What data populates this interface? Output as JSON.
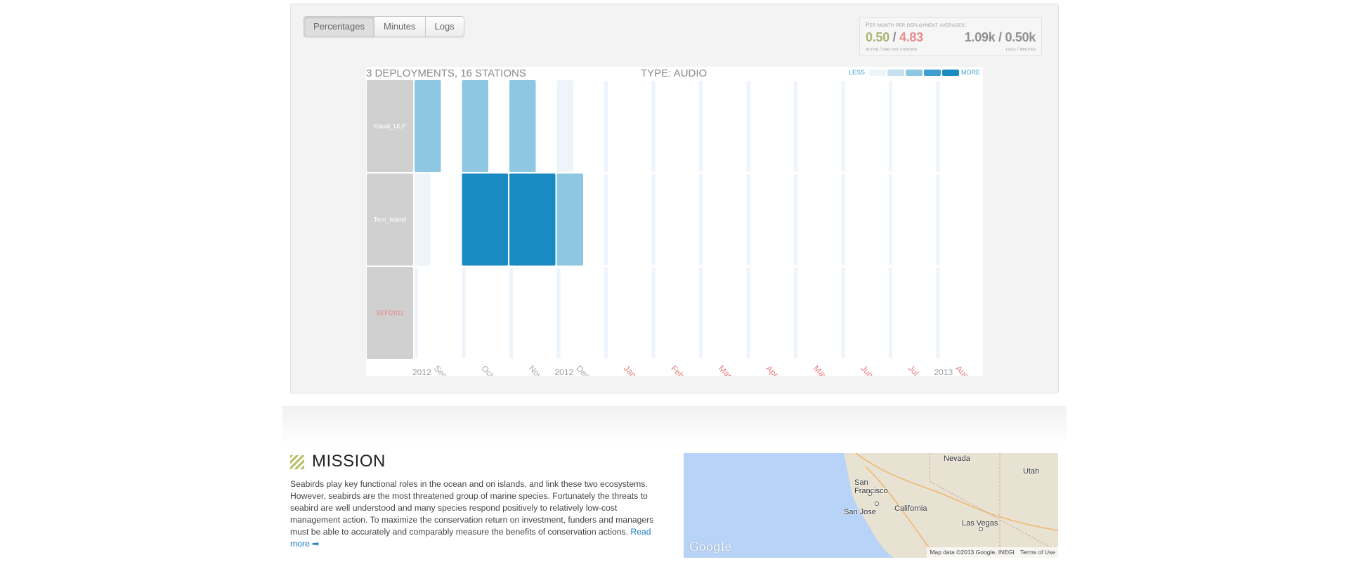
{
  "tabs": [
    "Percentages",
    "Minutes",
    "Logs"
  ],
  "averages": {
    "title": "Per month per deployment averages:",
    "active": "0.50",
    "slash": " / ",
    "inactive": "4.83",
    "right": "1.09k / 0.50k",
    "left_caption": "active / inactive stations",
    "right_caption": "logs / minutes"
  },
  "chart": {
    "summary": "3 DEPLOYMENTS, 16 STATIONS",
    "type_label": "TYPE: AUDIO",
    "legend_less": "LESS",
    "legend_more": "MORE",
    "legend_colors": [
      "#eef5fa",
      "#c6e0ed",
      "#8ec7e2",
      "#3d9fcf",
      "#1a8ac3"
    ],
    "row_label_bg": "#d0d0d0",
    "empty_bar_color": "#edf4fb"
  },
  "chart_data": {
    "type": "heatmap",
    "rows": [
      "Kauai_ULP",
      "Tern_Island",
      "SEFI2011"
    ],
    "row_label_colors": [
      "#ffffff",
      "#ffffff",
      "#e88080"
    ],
    "months": [
      "Sep",
      "Oct",
      "Nov",
      "Dec",
      "Jan",
      "Feb",
      "Mar",
      "Apr",
      "May",
      "Jun",
      "Jul",
      "Aug"
    ],
    "month_label_colors": [
      "#aaaaaa",
      "#aaaaaa",
      "#aaaaaa",
      "#aaaaaa",
      "#e88080",
      "#e88080",
      "#e88080",
      "#e88080",
      "#e88080",
      "#e88080",
      "#e88080",
      "#e88080"
    ],
    "year_labels": [
      {
        "text": "2012",
        "before_month": 0
      },
      {
        "text": "2012",
        "before_month": 3
      },
      {
        "text": "2013",
        "before_month": 11
      }
    ],
    "cells": [
      {
        "row": 0,
        "month": 0,
        "level": 3
      },
      {
        "row": 0,
        "month": 1,
        "level": 3
      },
      {
        "row": 0,
        "month": 2,
        "level": 3
      },
      {
        "row": 0,
        "month": 3,
        "level": 1
      },
      {
        "row": 1,
        "month": 0,
        "level": 1
      },
      {
        "row": 1,
        "month": 1,
        "level": 5
      },
      {
        "row": 1,
        "month": 2,
        "level": 5
      },
      {
        "row": 1,
        "month": 3,
        "level": 3
      }
    ]
  },
  "mission": {
    "title": "MISSION",
    "text": "Seabirds play key functional roles in the ocean and on islands, and link these two ecosystems. However, seabirds are the most threatened group of marine species. Fortunately the threats to seabird are well understood and many species respond positively to relatively low-cost management action. To maximize the conservation return on investment, funders and managers must be able to accurately and comparably measure the benefits of conservation actions. ",
    "read_more": "Read more ➡"
  },
  "map": {
    "labels": [
      "Nevada",
      "Utah",
      "San Francisco",
      "California",
      "San Jose",
      "Las Vegas"
    ],
    "google": "Google",
    "footer_data": "Map data ©2013 Google, INEGI",
    "footer_terms": "Terms of Use",
    "water_color": "#b7d3f7",
    "land_color": "#e8e2d3"
  }
}
